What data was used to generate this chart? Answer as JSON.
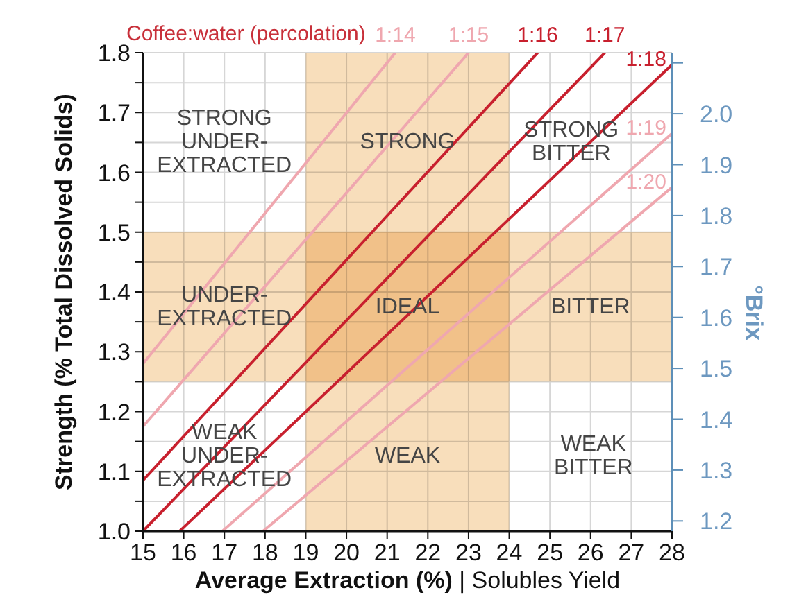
{
  "chart_data": {
    "type": "line",
    "title": "Coffee:water (percolation)",
    "xlabel": "Average Extraction (%) | Solubles Yield",
    "ylabel": "Strength (% Total Dissolved Solids)",
    "y2label": "°Brix",
    "xlim": [
      15,
      28
    ],
    "xticks": [
      15,
      16,
      17,
      18,
      19,
      20,
      21,
      22,
      23,
      24,
      25,
      26,
      27,
      28
    ],
    "ylim": [
      1,
      1.8
    ],
    "yticks": [
      {
        "value": 1,
        "label": "1.0"
      },
      {
        "value": 1.05,
        "label": null
      },
      1.1,
      {
        "value": 1.15,
        "label": null
      },
      1.2,
      {
        "value": 1.25,
        "label": null
      },
      1.3,
      {
        "value": 1.35,
        "label": null
      },
      1.4,
      {
        "value": 1.45,
        "label": null
      },
      1.5,
      {
        "value": 1.55,
        "label": null
      },
      1.6,
      {
        "value": 1.65,
        "label": null
      },
      1.7,
      {
        "value": 1.75,
        "label": null
      },
      1.8
    ],
    "y2lim": [
      1.18,
      2.12
    ],
    "y2ticks": [
      1.2,
      1.3,
      1.4,
      1.5,
      1.6,
      1.7,
      1.8,
      1.9,
      {
        "value": 2,
        "label": "2.0"
      },
      {
        "value": 2.1,
        "label": null
      }
    ],
    "grid": true,
    "marker": "none",
    "series": [
      {
        "name": "1:14",
        "color": "#efa7af",
        "x": [
          15,
          21.2
        ],
        "values": [
          1.28,
          1.8
        ]
      },
      {
        "name": "1:15",
        "color": "#efa7af",
        "x": [
          15,
          23
        ],
        "values": [
          1.175,
          1.8
        ]
      },
      {
        "name": "1:16",
        "color": "#c8202e",
        "x": [
          15,
          24.7
        ],
        "values": [
          1.085,
          1.8
        ]
      },
      {
        "name": "1:17",
        "color": "#c8202e",
        "x": [
          15,
          26.35
        ],
        "values": [
          1,
          1.8
        ]
      },
      {
        "name": "1:18",
        "color": "#c8202e",
        "x": [
          15.9,
          28
        ],
        "values": [
          1,
          1.78
        ]
      },
      {
        "name": "1:19",
        "color": "#efa7af",
        "x": [
          16.95,
          28
        ],
        "values": [
          1,
          1.665
        ]
      },
      {
        "name": "1:20",
        "color": "#efa7af",
        "x": [
          17.95,
          28
        ],
        "values": [
          1,
          1.575
        ]
      }
    ],
    "bands": [
      {
        "axis": "x",
        "from": 19,
        "to": 24,
        "color": "#f8debb"
      },
      {
        "axis": "y",
        "from": 1.25,
        "to": 1.5,
        "color": "#f8debb"
      }
    ],
    "annotations": [
      "STRONG\nUNDER-\nEXTRACTED",
      "STRONG",
      "STRONG\nBITTER",
      "UNDER-\nEXTRACTED",
      "IDEAL",
      "BITTER",
      "WEAK\nUNDER-\nEXTRACTED",
      "WEAK",
      "WEAK\nBITTER"
    ]
  }
}
